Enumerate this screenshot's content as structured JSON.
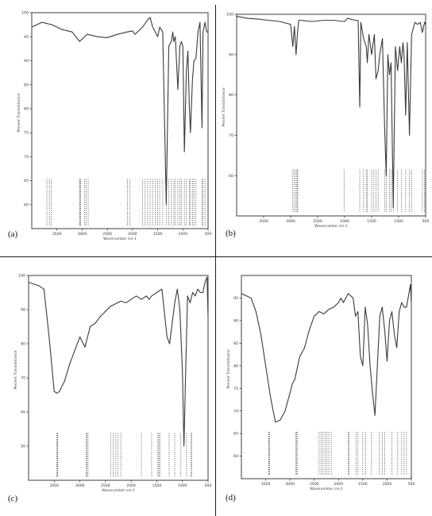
{
  "figure": {
    "panels": [
      "(a)",
      "(b)",
      "(c)",
      "(d)"
    ]
  },
  "chart_data": [
    {
      "type": "line",
      "panel_label": "(a)",
      "xlabel": "Wavenumber cm-1",
      "ylabel": "Percent Transmittance",
      "xlim": [
        4000,
        500
      ],
      "ylim": [
        55,
        100
      ],
      "x_ticks": [
        "3500",
        "3000",
        "2500",
        "2000",
        "1500",
        "1000",
        "500"
      ],
      "y_ticks": [
        "100",
        "95",
        "90",
        "85",
        "80",
        "75",
        "70",
        "65",
        "60"
      ],
      "x": [
        4000,
        3800,
        3600,
        3400,
        3200,
        3050,
        2900,
        2700,
        2500,
        2300,
        2100,
        2000,
        1950,
        1800,
        1700,
        1650,
        1600,
        1550,
        1500,
        1460,
        1400,
        1330,
        1280,
        1230,
        1200,
        1180,
        1150,
        1100,
        1060,
        1030,
        1000,
        970,
        930,
        900,
        870,
        850,
        810,
        780,
        740,
        700,
        660,
        620,
        600,
        560,
        530,
        500
      ],
      "y": [
        97,
        98,
        97.5,
        96.5,
        96,
        94,
        95.5,
        95,
        94.8,
        95.5,
        96,
        96.2,
        95.5,
        97,
        98.5,
        99,
        97,
        96,
        95,
        97,
        96,
        60,
        93,
        94,
        96,
        94,
        95,
        84,
        93,
        94,
        93,
        71,
        88,
        92,
        80,
        75,
        86,
        90,
        90.5,
        96,
        98,
        76,
        96,
        98,
        96,
        96
      ],
      "peaks": [
        3700,
        3650,
        3610,
        3050,
        3040,
        3030,
        2950,
        2920,
        2880,
        2100,
        2050,
        1800,
        1750,
        1700,
        1650,
        1600,
        1550,
        1500,
        1460,
        1400,
        1330,
        1280,
        1230,
        1180,
        1150,
        1100,
        1060,
        1030,
        970,
        930,
        870,
        850,
        810,
        780,
        740,
        620,
        600,
        560
      ]
    },
    {
      "type": "line",
      "panel_label": "(b)",
      "xlabel": "Wavenumber cm-1",
      "ylabel": "Percent Transmittance",
      "xlim": [
        4000,
        500
      ],
      "ylim": [
        50,
        100
      ],
      "x_ticks": [
        "3500",
        "3000",
        "2500",
        "2000",
        "1500",
        "1000",
        "500"
      ],
      "y_ticks": [
        "100",
        "90",
        "80",
        "70",
        "60"
      ],
      "x": [
        4000,
        3800,
        3600,
        3400,
        3200,
        3000,
        2960,
        2930,
        2900,
        2870,
        2850,
        2800,
        2600,
        2400,
        2200,
        2000,
        1950,
        1800,
        1750,
        1720,
        1700,
        1650,
        1600,
        1580,
        1550,
        1500,
        1450,
        1420,
        1380,
        1350,
        1300,
        1260,
        1230,
        1200,
        1170,
        1140,
        1100,
        1060,
        1020,
        980,
        950,
        920,
        900,
        870,
        840,
        800,
        760,
        720,
        700,
        650,
        600,
        560,
        520,
        500
      ],
      "y": [
        99.5,
        99,
        98.8,
        98.5,
        98.2,
        97.5,
        92,
        97,
        90,
        96,
        98.5,
        98.5,
        98.2,
        98.5,
        98.5,
        98.2,
        99,
        98.5,
        98.5,
        77,
        98,
        94,
        92,
        88,
        95,
        90,
        95,
        84,
        86,
        90,
        94,
        72,
        60,
        90,
        85,
        88,
        52,
        92,
        86,
        92,
        88,
        93,
        90,
        75,
        93,
        70,
        95,
        97,
        98,
        97.5,
        98,
        95.5,
        98,
        97.5
      ],
      "peaks": [
        2960,
        2930,
        2900,
        2880,
        2870,
        2010,
        1720,
        1650,
        1600,
        1580,
        1500,
        1460,
        1420,
        1380,
        1260,
        1230,
        1170,
        1140,
        1100,
        1020,
        950,
        870,
        800,
        760,
        560,
        520
      ]
    },
    {
      "type": "line",
      "panel_label": "(c)",
      "xlabel": "Wavenumber cm-1",
      "ylabel": "Percent Transmittance",
      "xlim": [
        4000,
        500
      ],
      "ylim": [
        40,
        100
      ],
      "x_ticks": [
        "3500",
        "3000",
        "2500",
        "2000",
        "1500",
        "1000",
        "500"
      ],
      "y_ticks": [
        "100",
        "90",
        "80",
        "70",
        "60",
        "50"
      ],
      "x": [
        4000,
        3900,
        3800,
        3700,
        3600,
        3500,
        3450,
        3400,
        3300,
        3200,
        3100,
        3000,
        2900,
        2800,
        2700,
        2600,
        2400,
        2200,
        2100,
        2000,
        1900,
        1800,
        1700,
        1650,
        1600,
        1500,
        1400,
        1300,
        1250,
        1150,
        1100,
        1050,
        1000,
        970,
        940,
        900,
        850,
        800,
        750,
        700,
        650,
        600,
        560,
        520,
        500
      ],
      "y": [
        98,
        97.5,
        97,
        96,
        82,
        66,
        65.5,
        66,
        69,
        74,
        78,
        82,
        79,
        85,
        86,
        88,
        91,
        92.5,
        92,
        93,
        94,
        93,
        94,
        93,
        94,
        95,
        96,
        82,
        80,
        92,
        96,
        90,
        72,
        50,
        70,
        94,
        92,
        95,
        94,
        96,
        95,
        95,
        98,
        99.5,
        88
      ],
      "peaks": [
        3450,
        3440,
        3430,
        2880,
        2860,
        2840,
        2400,
        2350,
        2300,
        2260,
        2200,
        1800,
        1600,
        1480,
        1460,
        1440,
        1260,
        1150,
        1030,
        920,
        830,
        820
      ]
    },
    {
      "type": "line",
      "panel_label": "(d)",
      "xlabel": "Wavenumber cm-1",
      "ylabel": "Percent Transmittance",
      "xlim": [
        4000,
        500
      ],
      "ylim": [
        55,
        100
      ],
      "x_ticks": [
        "3500",
        "3000",
        "2500",
        "2000",
        "1500",
        "1000",
        "500"
      ],
      "y_ticks": [
        "95",
        "90",
        "85",
        "80",
        "75",
        "70",
        "65",
        "60"
      ],
      "x": [
        4000,
        3900,
        3800,
        3700,
        3600,
        3500,
        3400,
        3300,
        3200,
        3100,
        3000,
        2950,
        2900,
        2800,
        2700,
        2600,
        2500,
        2400,
        2300,
        2200,
        2100,
        2000,
        1950,
        1900,
        1800,
        1700,
        1650,
        1600,
        1550,
        1500,
        1450,
        1400,
        1350,
        1300,
        1250,
        1200,
        1150,
        1100,
        1050,
        1000,
        950,
        900,
        850,
        800,
        750,
        700,
        650,
        600,
        550,
        520,
        500
      ],
      "y": [
        96,
        95.5,
        95,
        92,
        87,
        80,
        73,
        67.5,
        68,
        70,
        74,
        76,
        77,
        82,
        84,
        88,
        91,
        92,
        91.5,
        92.5,
        93,
        94,
        95,
        94,
        96,
        95,
        91,
        92,
        82,
        80,
        93,
        89,
        80,
        74,
        69,
        80,
        91,
        93,
        88,
        81,
        90,
        92,
        87,
        84,
        92,
        94,
        93,
        93,
        96,
        98,
        94
      ],
      "peaks": [
        3440,
        3430,
        3420,
        2880,
        2860,
        2850,
        2400,
        2360,
        2320,
        2280,
        2240,
        2200,
        2150,
        1800,
        1780,
        1640,
        1600,
        1500,
        1440,
        1320,
        1160,
        1100,
        1050,
        900,
        780,
        700,
        650,
        600
      ]
    }
  ]
}
